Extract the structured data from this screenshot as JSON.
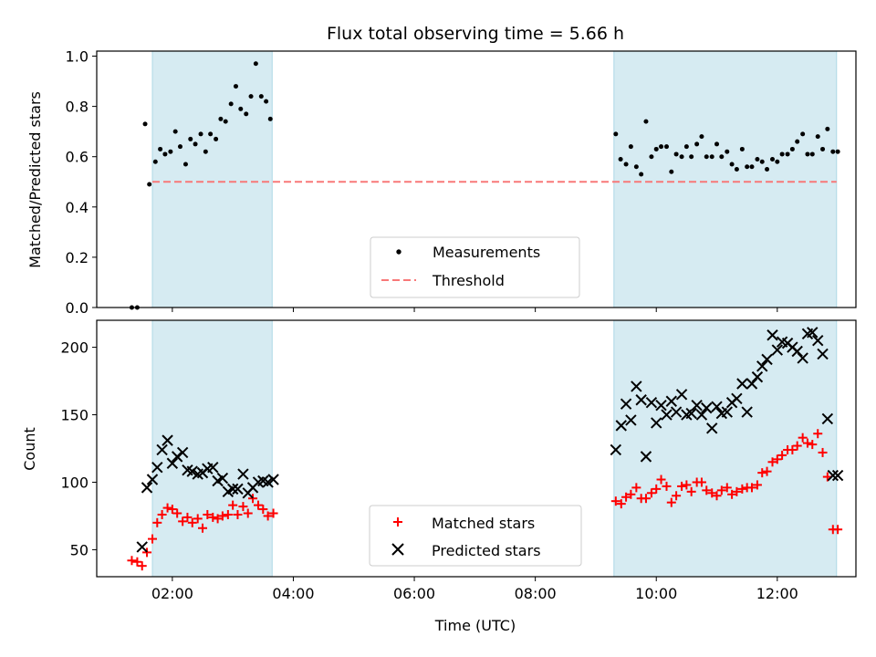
{
  "chart_data": [
    {
      "type": "scatter",
      "title": "Flux total observing time = 5.66 h",
      "xlabel": "",
      "ylabel": "Matched/Predicted stars",
      "xlim": [
        0.75,
        13.3
      ],
      "ylim": [
        0.0,
        1.02
      ],
      "yticks": [
        0.0,
        0.2,
        0.4,
        0.6,
        0.8,
        1.0
      ],
      "ytick_labels": [
        "0.0",
        "0.2",
        "0.4",
        "0.6",
        "0.8",
        "1.0"
      ],
      "shaded_intervals": [
        [
          1.67,
          3.65
        ],
        [
          9.3,
          12.98
        ]
      ],
      "threshold": {
        "name": "Threshold",
        "y": 0.5,
        "x_range": [
          1.67,
          12.98
        ],
        "color": "#f87878"
      },
      "series": [
        {
          "name": "Measurements",
          "color": "#000000",
          "x": [
            1.33,
            1.42,
            1.55,
            1.62,
            1.72,
            1.8,
            1.88,
            1.97,
            2.05,
            2.13,
            2.22,
            2.3,
            2.38,
            2.47,
            2.55,
            2.63,
            2.72,
            2.8,
            2.88,
            2.97,
            3.05,
            3.13,
            3.22,
            3.3,
            3.38,
            3.47,
            3.55,
            3.62,
            9.33,
            9.41,
            9.5,
            9.58,
            9.67,
            9.75,
            9.83,
            9.92,
            10.0,
            10.08,
            10.17,
            10.25,
            10.33,
            10.42,
            10.5,
            10.58,
            10.67,
            10.75,
            10.83,
            10.92,
            11.0,
            11.08,
            11.17,
            11.25,
            11.33,
            11.42,
            11.5,
            11.58,
            11.67,
            11.75,
            11.83,
            11.92,
            12.0,
            12.08,
            12.17,
            12.25,
            12.33,
            12.42,
            12.5,
            12.58,
            12.67,
            12.75,
            12.83,
            12.92,
            13.0
          ],
          "y": [
            0.0,
            0.0,
            0.73,
            0.49,
            0.58,
            0.63,
            0.61,
            0.62,
            0.7,
            0.64,
            0.57,
            0.67,
            0.65,
            0.69,
            0.62,
            0.69,
            0.67,
            0.75,
            0.74,
            0.81,
            0.88,
            0.79,
            0.77,
            0.84,
            0.97,
            0.84,
            0.82,
            0.75,
            0.69,
            0.59,
            0.57,
            0.64,
            0.56,
            0.53,
            0.74,
            0.6,
            0.63,
            0.64,
            0.64,
            0.54,
            0.61,
            0.6,
            0.64,
            0.6,
            0.65,
            0.68,
            0.6,
            0.6,
            0.65,
            0.6,
            0.62,
            0.57,
            0.55,
            0.63,
            0.56,
            0.56,
            0.59,
            0.58,
            0.55,
            0.59,
            0.58,
            0.61,
            0.61,
            0.63,
            0.66,
            0.69,
            0.61,
            0.61,
            0.68,
            0.63,
            0.71,
            0.62,
            0.62
          ]
        }
      ],
      "legend": {
        "position": "lower-center",
        "entries": [
          "Measurements",
          "Threshold"
        ]
      }
    },
    {
      "type": "scatter",
      "title": "",
      "xlabel": "Time (UTC)",
      "ylabel": "Count",
      "xlim": [
        0.75,
        13.3
      ],
      "ylim": [
        30,
        220
      ],
      "yticks": [
        50,
        100,
        150,
        200
      ],
      "ytick_labels": [
        "50",
        "100",
        "150",
        "200"
      ],
      "xticks": [
        2,
        4,
        6,
        8,
        10,
        12
      ],
      "xtick_labels": [
        "02:00",
        "04:00",
        "06:00",
        "08:00",
        "10:00",
        "12:00"
      ],
      "shaded_intervals": [
        [
          1.67,
          3.65
        ],
        [
          9.3,
          12.98
        ]
      ],
      "series": [
        {
          "name": "Matched stars",
          "marker": "plus",
          "color": "#ff0000",
          "x": [
            1.33,
            1.42,
            1.5,
            1.58,
            1.67,
            1.75,
            1.83,
            1.92,
            2.0,
            2.08,
            2.17,
            2.25,
            2.33,
            2.42,
            2.5,
            2.58,
            2.67,
            2.75,
            2.83,
            2.92,
            3.0,
            3.08,
            3.17,
            3.25,
            3.33,
            3.42,
            3.5,
            3.58,
            3.67,
            9.33,
            9.42,
            9.5,
            9.58,
            9.67,
            9.75,
            9.83,
            9.92,
            10.0,
            10.08,
            10.17,
            10.25,
            10.33,
            10.42,
            10.5,
            10.58,
            10.67,
            10.75,
            10.83,
            10.92,
            11.0,
            11.08,
            11.17,
            11.25,
            11.33,
            11.42,
            11.5,
            11.58,
            11.67,
            11.75,
            11.83,
            11.92,
            12.0,
            12.08,
            12.17,
            12.25,
            12.33,
            12.42,
            12.5,
            12.58,
            12.67,
            12.75,
            12.83,
            12.92,
            13.0
          ],
          "y": [
            42,
            41,
            38,
            48,
            58,
            70,
            76,
            81,
            80,
            77,
            71,
            74,
            70,
            73,
            66,
            76,
            74,
            73,
            75,
            76,
            83,
            76,
            82,
            77,
            88,
            83,
            80,
            75,
            77,
            86,
            84,
            89,
            91,
            96,
            88,
            88,
            92,
            95,
            102,
            97,
            85,
            90,
            97,
            98,
            93,
            100,
            100,
            94,
            92,
            90,
            94,
            96,
            91,
            93,
            95,
            96,
            96,
            98,
            107,
            108,
            115,
            117,
            120,
            124,
            124,
            127,
            133,
            129,
            128,
            136,
            122,
            104,
            65,
            65
          ],
          "x_tail": []
        },
        {
          "name": "Predicted stars",
          "marker": "x",
          "color": "#000000",
          "x": [
            1.5,
            1.58,
            1.67,
            1.75,
            1.83,
            1.92,
            2.0,
            2.08,
            2.17,
            2.25,
            2.33,
            2.42,
            2.5,
            2.58,
            2.67,
            2.75,
            2.83,
            2.92,
            3.0,
            3.08,
            3.17,
            3.25,
            3.33,
            3.42,
            3.5,
            3.58,
            3.67,
            9.33,
            9.42,
            9.5,
            9.58,
            9.67,
            9.75,
            9.83,
            9.92,
            10.0,
            10.08,
            10.17,
            10.25,
            10.33,
            10.42,
            10.5,
            10.58,
            10.67,
            10.75,
            10.83,
            10.92,
            11.0,
            11.08,
            11.17,
            11.25,
            11.33,
            11.42,
            11.5,
            11.58,
            11.67,
            11.75,
            11.83,
            11.92,
            12.0,
            12.08,
            12.17,
            12.25,
            12.33,
            12.42,
            12.5,
            12.58,
            12.67,
            12.75,
            12.83,
            12.92,
            13.0
          ],
          "y": [
            52,
            96,
            102,
            111,
            124,
            131,
            114,
            119,
            122,
            109,
            108,
            106,
            107,
            110,
            111,
            101,
            103,
            93,
            95,
            95,
            106,
            92,
            96,
            100,
            101,
            100,
            102,
            124,
            142,
            158,
            146,
            171,
            161,
            119,
            159,
            144,
            157,
            150,
            160,
            152,
            165,
            150,
            151,
            157,
            150,
            155,
            140,
            156,
            151,
            152,
            159,
            162,
            173,
            152,
            173,
            178,
            186,
            191,
            209,
            198,
            204,
            203,
            200,
            197,
            192,
            210,
            211,
            205,
            195,
            147,
            105,
            105
          ]
        }
      ],
      "legend": {
        "position": "lower-center",
        "entries": [
          "Matched stars",
          "Predicted stars"
        ]
      }
    }
  ]
}
